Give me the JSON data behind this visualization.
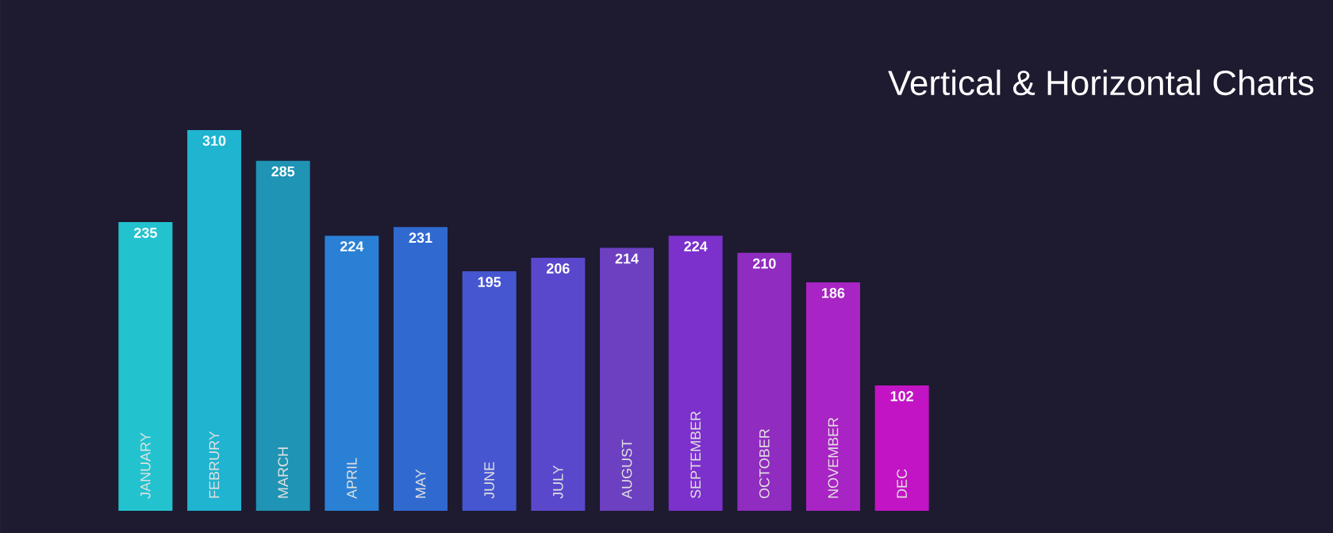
{
  "chart_data": {
    "type": "bar",
    "title": "Vertical & Horizontal Charts",
    "categories": [
      "JANUARY",
      "FEBRURY",
      "MARCH",
      "APRIL",
      "MAY",
      "JUNE",
      "JULY",
      "AUGUST",
      "SEPTEMBER",
      "OCTOBER",
      "NOVEMBER",
      "DEC"
    ],
    "values": [
      235,
      310,
      285,
      224,
      231,
      195,
      206,
      214,
      224,
      210,
      186,
      102
    ],
    "colors": [
      "#22c3cf",
      "#1fb4d0",
      "#1f94b4",
      "#2a80d4",
      "#306ad0",
      "#4656d0",
      "#5a48cc",
      "#6c40c0",
      "#7c30cc",
      "#902cc0",
      "#a824c4",
      "#c214c4"
    ],
    "data_labels": true
  }
}
